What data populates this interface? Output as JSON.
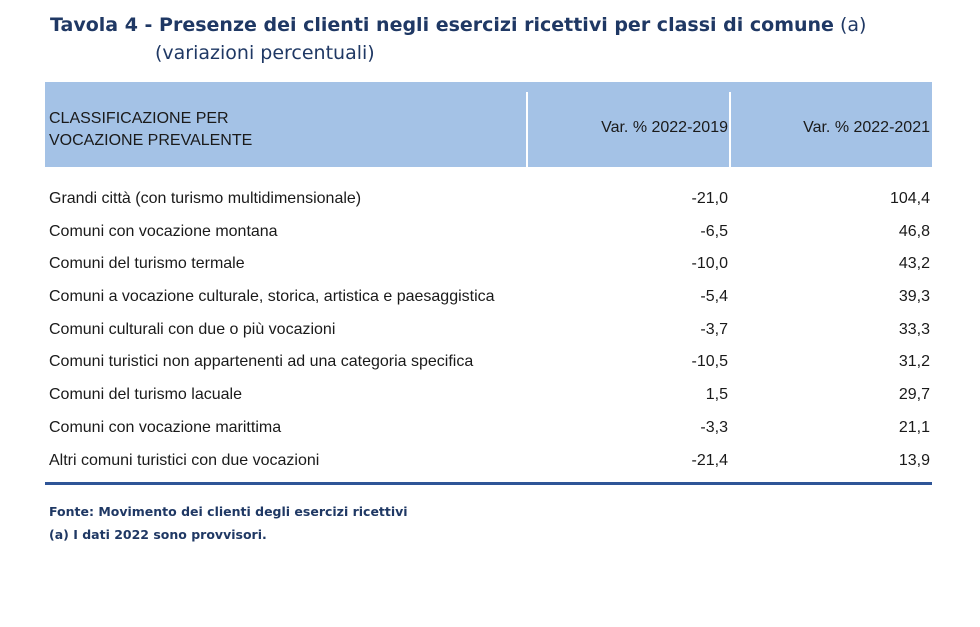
{
  "title": {
    "main": "Tavola 4 - Presenze dei clienti negli esercizi ricettivi per classi di comune",
    "note": "(a)",
    "subtitle": "(variazioni percentuali)"
  },
  "table": {
    "headers": {
      "col1_line1": "CLASSIFICAZIONE PER",
      "col1_line2": "VOCAZIONE PREVALENTE",
      "col2": "Var. % 2022-2019",
      "col3": "Var. % 2022-2021"
    },
    "rows": [
      {
        "label": "Grandi città (con turismo multidimensionale)",
        "v2019": "-21,0",
        "v2021": "104,4"
      },
      {
        "label": "Comuni con vocazione montana",
        "v2019": "-6,5",
        "v2021": "46,8"
      },
      {
        "label": "Comuni del turismo termale",
        "v2019": "-10,0",
        "v2021": "43,2"
      },
      {
        "label": "Comuni a vocazione culturale, storica, artistica e paesaggistica",
        "v2019": "-5,4",
        "v2021": "39,3"
      },
      {
        "label": "Comuni culturali con due o più vocazioni",
        "v2019": "-3,7",
        "v2021": "33,3"
      },
      {
        "label": "Comuni turistici non appartenenti ad una categoria specifica",
        "v2019": "-10,5",
        "v2021": "31,2"
      },
      {
        "label": "Comuni del turismo lacuale",
        "v2019": "1,5",
        "v2021": "29,7"
      },
      {
        "label": "Comuni con vocazione marittima",
        "v2019": "-3,3",
        "v2021": "21,1"
      },
      {
        "label": "Altri comuni turistici con due vocazioni",
        "v2019": "-21,4",
        "v2021": "13,9"
      }
    ]
  },
  "footer": {
    "source": "Fonte: Movimento dei clienti degli esercizi ricettivi",
    "note": "(a) I dati 2022 sono provvisori."
  },
  "colors": {
    "title": "#1f3864",
    "header_bg": "#a4c2e6",
    "rule": "#2f5597"
  }
}
